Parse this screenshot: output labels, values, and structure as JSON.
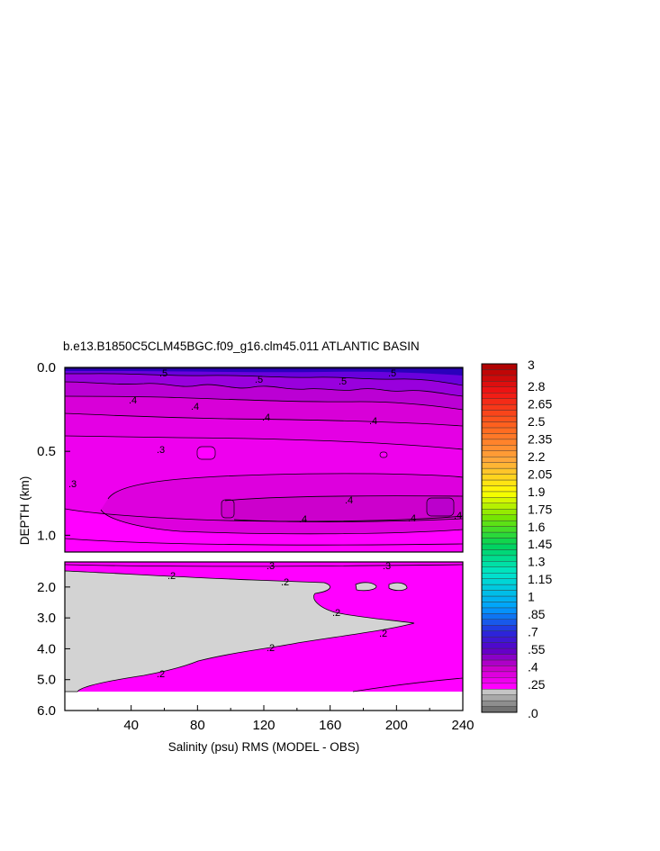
{
  "chart_data": {
    "type": "contour",
    "title": "b.e13.B1850C5CLM45BGC.f09_g16.clm45.011 ATLANTIC BASIN",
    "xlabel": "Salinity (psu) RMS (MODEL - OBS)",
    "ylabel": "DEPTH (km)",
    "xlim": [
      0,
      240
    ],
    "x_ticks": [
      "40",
      "80",
      "120",
      "160",
      "200",
      "240"
    ],
    "upper_panel": {
      "ylim": [
        0.0,
        1.1
      ],
      "y_ticks": [
        "0.0",
        "0.5",
        "1.0"
      ],
      "y_tick_values": [
        0.0,
        0.5,
        1.0
      ]
    },
    "lower_panel": {
      "ylim": [
        1.1,
        6.0
      ],
      "y_ticks": [
        "2.0",
        "3.0",
        "4.0",
        "5.0",
        "6.0"
      ],
      "y_tick_values": [
        2.0,
        3.0,
        4.0,
        5.0,
        6.0
      ]
    },
    "contour_labels": [
      ".5",
      ".4",
      ".3",
      ".2"
    ],
    "colorbar": {
      "labels": [
        "3",
        "2.8",
        "2.65",
        "2.5",
        "2.35",
        "2.2",
        "2.05",
        "1.9",
        "1.75",
        "1.6",
        "1.45",
        "1.3",
        "1.15",
        "1",
        ".85",
        ".7",
        ".55",
        ".4",
        ".25",
        ".0"
      ],
      "range": [
        0.0,
        3.0
      ]
    },
    "colors": {
      "low_fill": "#d3d3d3",
      "mid_fill": "#ff00ff",
      "upper_fill": "#cc00cc",
      "high_fill": "#5500cc",
      "top_max": "#ca0000"
    }
  }
}
